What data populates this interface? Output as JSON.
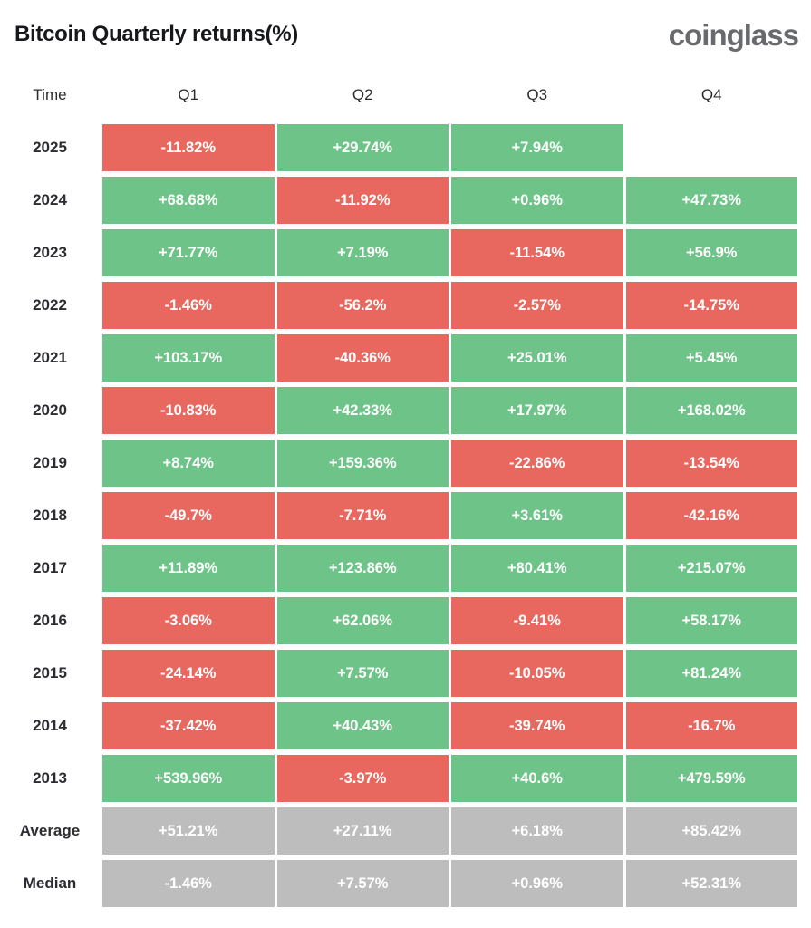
{
  "header": {
    "title": "Bitcoin Quarterly returns(%)",
    "logo_text": "coinglass"
  },
  "colors": {
    "positive": "#6ec488",
    "negative": "#e8685f",
    "neutral": "#bdbdbd",
    "value_text": "#ffffff",
    "label_text": "#2c2d30",
    "title_text": "#17181b",
    "logo_text": "#696a6e",
    "background": "#ffffff"
  },
  "chart_data": {
    "type": "table",
    "title": "Bitcoin Quarterly returns(%)",
    "columns": [
      "Time",
      "Q1",
      "Q2",
      "Q3",
      "Q4"
    ],
    "value_unit": "percent",
    "color_coding": "green = positive return, red = negative return, gray = summary rows, blank = no data yet",
    "rows": [
      {
        "label": "2025",
        "summary": false,
        "values": [
          "-11.82%",
          "+29.74%",
          "+7.94%",
          null
        ]
      },
      {
        "label": "2024",
        "summary": false,
        "values": [
          "+68.68%",
          "-11.92%",
          "+0.96%",
          "+47.73%"
        ]
      },
      {
        "label": "2023",
        "summary": false,
        "values": [
          "+71.77%",
          "+7.19%",
          "-11.54%",
          "+56.9%"
        ]
      },
      {
        "label": "2022",
        "summary": false,
        "values": [
          "-1.46%",
          "-56.2%",
          "-2.57%",
          "-14.75%"
        ]
      },
      {
        "label": "2021",
        "summary": false,
        "values": [
          "+103.17%",
          "-40.36%",
          "+25.01%",
          "+5.45%"
        ]
      },
      {
        "label": "2020",
        "summary": false,
        "values": [
          "-10.83%",
          "+42.33%",
          "+17.97%",
          "+168.02%"
        ]
      },
      {
        "label": "2019",
        "summary": false,
        "values": [
          "+8.74%",
          "+159.36%",
          "-22.86%",
          "-13.54%"
        ]
      },
      {
        "label": "2018",
        "summary": false,
        "values": [
          "-49.7%",
          "-7.71%",
          "+3.61%",
          "-42.16%"
        ]
      },
      {
        "label": "2017",
        "summary": false,
        "values": [
          "+11.89%",
          "+123.86%",
          "+80.41%",
          "+215.07%"
        ]
      },
      {
        "label": "2016",
        "summary": false,
        "values": [
          "-3.06%",
          "+62.06%",
          "-9.41%",
          "+58.17%"
        ]
      },
      {
        "label": "2015",
        "summary": false,
        "values": [
          "-24.14%",
          "+7.57%",
          "-10.05%",
          "+81.24%"
        ]
      },
      {
        "label": "2014",
        "summary": false,
        "values": [
          "-37.42%",
          "+40.43%",
          "-39.74%",
          "-16.7%"
        ]
      },
      {
        "label": "2013",
        "summary": false,
        "values": [
          "+539.96%",
          "-3.97%",
          "+40.6%",
          "+479.59%"
        ]
      },
      {
        "label": "Average",
        "summary": true,
        "values": [
          "+51.21%",
          "+27.11%",
          "+6.18%",
          "+85.42%"
        ]
      },
      {
        "label": "Median",
        "summary": true,
        "values": [
          "-1.46%",
          "+7.57%",
          "+0.96%",
          "+52.31%"
        ]
      }
    ]
  }
}
